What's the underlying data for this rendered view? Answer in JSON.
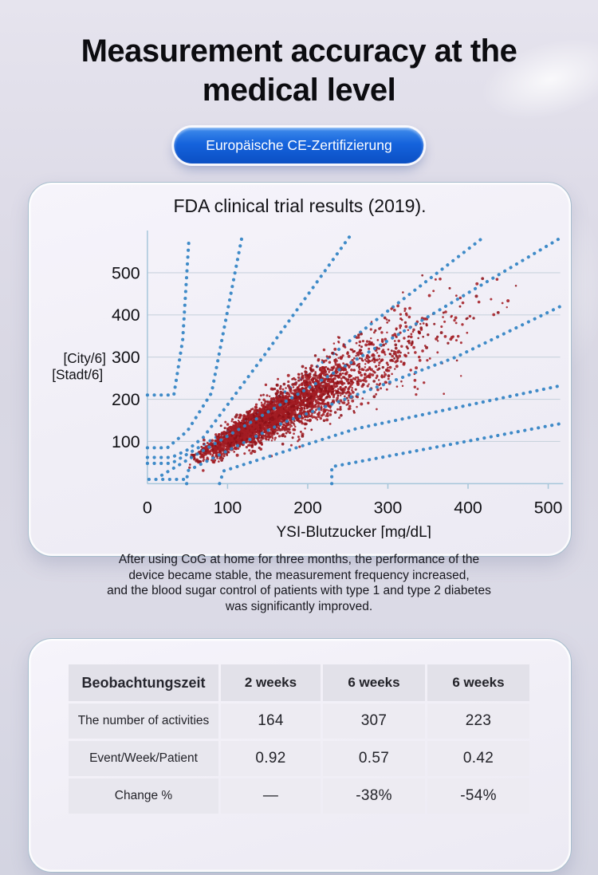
{
  "page": {
    "title_line1": "Measurement accuracy at the",
    "title_line2": "medical level",
    "badge_label": "Europäische CE-Zertifizierung",
    "paragraph": "After using CoG at home for three months, the performance of the\ndevice became stable, the measurement frequency increased,\nand the blood sugar control of patients with type 1 and type 2 diabetes\nwas significantly improved."
  },
  "colors": {
    "badge_blue": "#1563dc",
    "dot_blue": "#3585c5",
    "scatter_red": "#a31d23",
    "scatter_red_dark": "#8d1118",
    "gridline": "#c9d3dd",
    "axis": "#a6c6da",
    "tick_text": "#101014"
  },
  "chart_data": {
    "type": "scatter",
    "title": "FDA clinical trial results (2019).",
    "xlabel": "YSI-Blutzucker [mg/dL]",
    "ylabel_lines": [
      "[City/6]",
      "[Stadt/6]"
    ],
    "xlim": [
      0,
      515
    ],
    "ylim": [
      0,
      600
    ],
    "x_ticks": [
      0,
      100,
      200,
      300,
      400,
      500
    ],
    "y_ticks": [
      100,
      200,
      300,
      400,
      500
    ],
    "grid": true,
    "legend": "none",
    "description": "Parkes/consensus error-grid style plot: dense dark-red CGM-vs-YSI scatter along the identity line with blue dotted zone-boundary lines",
    "boundary_lines": [
      {
        "name": "zone-e-upper",
        "layer": "under",
        "points": [
          [
            0,
            210
          ],
          [
            33,
            210
          ],
          [
            44,
            340
          ],
          [
            52,
            585
          ]
        ]
      },
      {
        "name": "zone-d-upper",
        "layer": "under",
        "points": [
          [
            0,
            85
          ],
          [
            25,
            85
          ],
          [
            50,
            125
          ],
          [
            80,
            215
          ],
          [
            118,
            585
          ]
        ]
      },
      {
        "name": "zone-c-upper",
        "layer": "under",
        "points": [
          [
            0,
            62
          ],
          [
            30,
            62
          ],
          [
            50,
            80
          ],
          [
            70,
            110
          ],
          [
            150,
            315
          ],
          [
            252,
            585
          ]
        ]
      },
      {
        "name": "zone-b-upper",
        "layer": "under",
        "points": [
          [
            0,
            48
          ],
          [
            30,
            48
          ],
          [
            140,
            170
          ],
          [
            280,
            380
          ],
          [
            420,
            585
          ]
        ]
      },
      {
        "name": "identity-diagonal",
        "layer": "over",
        "points": [
          [
            18,
            20
          ],
          [
            515,
            582
          ]
        ]
      },
      {
        "name": "zone-b-lower",
        "layer": "over",
        "points": [
          [
            49,
            0
          ],
          [
            50,
            30
          ],
          [
            170,
            145
          ],
          [
            385,
            300
          ],
          [
            515,
            420
          ]
        ]
      },
      {
        "name": "zone-c-lower",
        "layer": "over",
        "points": [
          [
            90,
            0
          ],
          [
            95,
            30
          ],
          [
            260,
            130
          ],
          [
            515,
            232
          ]
        ]
      },
      {
        "name": "zone-d-lower",
        "layer": "over",
        "points": [
          [
            230,
            0
          ],
          [
            230,
            40
          ],
          [
            515,
            142
          ]
        ]
      },
      {
        "name": "axis-hug-lower",
        "layer": "over",
        "points": [
          [
            2,
            10
          ],
          [
            46,
            10
          ]
        ]
      }
    ],
    "scatter_cluster": {
      "count": 3200,
      "seed": 77,
      "x_center": 165,
      "x_log_sd": 0.38,
      "slope": 1.02,
      "rel_noise": 0.15,
      "abs_noise": 7,
      "x_range": [
        52,
        460
      ],
      "y_range": [
        25,
        500
      ],
      "point_radius": 1.6
    }
  },
  "table": {
    "header": [
      "Beobachtungszeit",
      "2 weeks",
      "6 weeks",
      "6 weeks"
    ],
    "rows": [
      [
        "The number of activities",
        "164",
        "307",
        "223"
      ],
      [
        "Event/Week/Patient",
        "0.92",
        "0.57",
        "0.42"
      ],
      [
        "Change %",
        "—",
        "-38%",
        "-54%"
      ]
    ]
  }
}
